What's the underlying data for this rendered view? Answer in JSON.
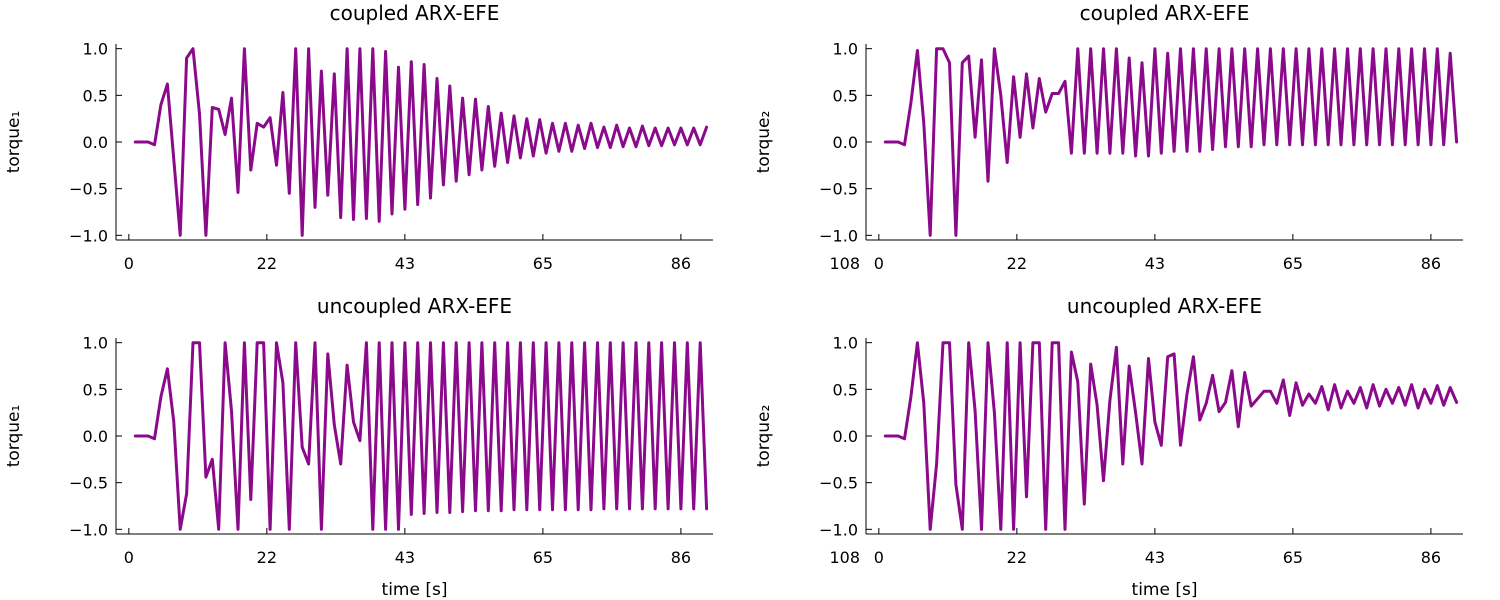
{
  "chart_data": [
    {
      "type": "line",
      "title": "coupled ARX-EFE",
      "xlabel": "",
      "ylabel": "torque₁",
      "xticks": [
        "0",
        "22",
        "43",
        "65",
        "86"
      ],
      "yticks": [
        "1.0",
        "0.5",
        "0.0",
        "−0.5",
        "−1.0"
      ],
      "extra_xtick": "",
      "xlim": [
        -2,
        91
      ],
      "ylim": [
        -1.05,
        1.05
      ],
      "series": [
        {
          "name": "torque1",
          "color": "#8b0a8b",
          "x": [
            1,
            2,
            3,
            4,
            5,
            6,
            8,
            9,
            10,
            11,
            12,
            13,
            14,
            15,
            16,
            17,
            18,
            19,
            20,
            21,
            22,
            23,
            24,
            25,
            26,
            27,
            28,
            29,
            30,
            31,
            32,
            33,
            34,
            35,
            36,
            37,
            38,
            39,
            40,
            41,
            42,
            43,
            44,
            45,
            46,
            47,
            48,
            49,
            50,
            51,
            52,
            53,
            54,
            55,
            56,
            57,
            58,
            59,
            60,
            61,
            62,
            63,
            64,
            65,
            66,
            67,
            68,
            69,
            70,
            71,
            72,
            73,
            74,
            75,
            76,
            77,
            78,
            79,
            80,
            81,
            82,
            83,
            84,
            85,
            86,
            87,
            88,
            89,
            90
          ],
          "y": [
            0,
            0,
            0,
            -0.03,
            0.4,
            0.62,
            -1,
            0.9,
            1,
            0.3,
            -1,
            0.37,
            0.35,
            0.08,
            0.47,
            -0.54,
            1,
            -0.3,
            0.2,
            0.16,
            0.26,
            -0.25,
            0.53,
            -0.55,
            1,
            -1,
            1,
            -0.7,
            0.76,
            -0.57,
            0.73,
            -0.81,
            1,
            -0.83,
            1,
            -0.82,
            1,
            -0.85,
            0.97,
            -0.77,
            0.8,
            -0.72,
            0.86,
            -0.67,
            0.83,
            -0.6,
            0.68,
            -0.46,
            0.6,
            -0.42,
            0.47,
            -0.35,
            0.46,
            -0.3,
            0.38,
            -0.26,
            0.31,
            -0.22,
            0.28,
            -0.17,
            0.25,
            -0.15,
            0.24,
            -0.12,
            0.2,
            -0.1,
            0.2,
            -0.1,
            0.18,
            -0.07,
            0.2,
            -0.06,
            0.16,
            -0.06,
            0.18,
            -0.05,
            0.15,
            -0.05,
            0.17,
            -0.04,
            0.15,
            -0.04,
            0.15,
            -0.03,
            0.15,
            -0.03,
            0.15,
            -0.03,
            0.16
          ]
        }
      ]
    },
    {
      "type": "line",
      "title": "coupled ARX-EFE",
      "xlabel": "",
      "ylabel": "torque₂",
      "xticks": [
        "0",
        "22",
        "43",
        "65",
        "86"
      ],
      "yticks": [
        "1.0",
        "0.5",
        "0.0",
        "−0.5",
        "−1.0"
      ],
      "extra_xtick": "108",
      "xlim": [
        -2,
        91
      ],
      "ylim": [
        -1.05,
        1.05
      ],
      "series": [
        {
          "name": "torque2",
          "color": "#8b0a8b",
          "x": [
            1,
            2,
            3,
            4,
            5,
            6,
            7,
            8,
            9,
            10,
            11,
            12,
            13,
            14,
            15,
            16,
            17,
            18,
            19,
            20,
            21,
            22,
            23,
            24,
            25,
            26,
            27,
            28,
            29,
            30,
            31,
            32,
            33,
            34,
            35,
            36,
            37,
            38,
            39,
            40,
            41,
            42,
            43,
            44,
            45,
            46,
            47,
            48,
            49,
            50,
            51,
            52,
            53,
            54,
            55,
            56,
            57,
            58,
            59,
            60,
            61,
            62,
            63,
            64,
            65,
            66,
            67,
            68,
            69,
            70,
            71,
            72,
            73,
            74,
            75,
            76,
            77,
            78,
            79,
            80,
            81,
            82,
            83,
            84,
            85,
            86,
            87,
            88,
            89,
            90
          ],
          "y": [
            0,
            0,
            0,
            -0.03,
            0.42,
            0.98,
            0.2,
            -1,
            1,
            1,
            0.85,
            -1,
            0.85,
            0.92,
            0.05,
            0.88,
            -0.42,
            1,
            0.5,
            -0.22,
            0.7,
            0.05,
            0.73,
            0.15,
            0.68,
            0.32,
            0.52,
            0.52,
            0.65,
            -0.12,
            1,
            -0.12,
            1,
            -0.12,
            1,
            -0.12,
            1,
            -0.12,
            0.9,
            -0.15,
            0.85,
            -0.15,
            1,
            -0.12,
            0.95,
            -0.1,
            1,
            -0.1,
            1,
            -0.1,
            1,
            -0.08,
            1,
            -0.05,
            1,
            -0.05,
            1,
            -0.05,
            1,
            -0.03,
            1,
            -0.03,
            1,
            -0.03,
            1,
            -0.03,
            1,
            -0.03,
            1,
            -0.03,
            1,
            -0.03,
            1,
            -0.03,
            1,
            -0.03,
            1,
            -0.03,
            1,
            -0.03,
            1,
            -0.03,
            1,
            -0.03,
            1,
            -0.03,
            1,
            -0.03,
            0.95,
            0
          ]
        }
      ]
    },
    {
      "type": "line",
      "title": "uncoupled ARX-EFE",
      "xlabel": "time [s]",
      "ylabel": "torque₁",
      "xticks": [
        "0",
        "22",
        "43",
        "65",
        "86"
      ],
      "yticks": [
        "1.0",
        "0.5",
        "0.0",
        "−0.5",
        "−1.0"
      ],
      "extra_xtick": "",
      "xlim": [
        -2,
        91
      ],
      "ylim": [
        -1.05,
        1.05
      ],
      "series": [
        {
          "name": "torque1",
          "color": "#8b0a8b",
          "x": [
            1,
            2,
            3,
            4,
            5,
            6,
            7,
            8,
            9,
            10,
            11,
            12,
            13,
            14,
            15,
            16,
            17,
            18,
            19,
            20,
            21,
            22,
            23,
            24,
            25,
            26,
            27,
            28,
            29,
            30,
            31,
            32,
            33,
            34,
            35,
            36,
            37,
            38,
            39,
            40,
            41,
            42,
            43,
            44,
            45,
            46,
            47,
            48,
            49,
            50,
            51,
            52,
            53,
            54,
            55,
            56,
            57,
            58,
            59,
            60,
            61,
            62,
            63,
            64,
            65,
            66,
            67,
            68,
            69,
            70,
            71,
            72,
            73,
            74,
            75,
            76,
            77,
            78,
            79,
            80,
            81,
            82,
            83,
            84,
            85,
            86,
            87,
            88,
            89,
            90
          ],
          "y": [
            0,
            0,
            0,
            -0.03,
            0.42,
            0.72,
            0.15,
            -1,
            -0.62,
            1,
            1,
            -0.44,
            -0.25,
            -1,
            1,
            0.27,
            -1,
            1,
            -0.68,
            1,
            1,
            -1,
            1,
            0.57,
            -1,
            1,
            -0.12,
            -0.3,
            1,
            -1,
            0.88,
            0.12,
            -0.3,
            0.76,
            0.15,
            -0.05,
            1,
            -1,
            1,
            -1,
            1,
            -1,
            1,
            -0.84,
            1,
            -0.83,
            1,
            -0.82,
            1,
            -0.82,
            1,
            -0.81,
            1,
            -0.8,
            1,
            -0.8,
            1,
            -0.8,
            1,
            -0.79,
            1,
            -0.79,
            1,
            -0.79,
            1,
            -0.79,
            1,
            -0.79,
            1,
            -0.79,
            1,
            -0.79,
            1,
            -0.78,
            1,
            -0.78,
            1,
            -0.78,
            1,
            -0.78,
            1,
            -0.78,
            1,
            -0.78,
            1,
            -0.78,
            1,
            -0.78,
            1,
            -0.78
          ]
        }
      ]
    },
    {
      "type": "line",
      "title": "uncoupled ARX-EFE",
      "xlabel": "time [s]",
      "ylabel": "torque₂",
      "xticks": [
        "0",
        "22",
        "43",
        "65",
        "86"
      ],
      "yticks": [
        "1.0",
        "0.5",
        "0.0",
        "−0.5",
        "−1.0"
      ],
      "extra_xtick": "108",
      "xlim": [
        -2,
        91
      ],
      "ylim": [
        -1.05,
        1.05
      ],
      "series": [
        {
          "name": "torque2",
          "color": "#8b0a8b",
          "x": [
            1,
            2,
            3,
            4,
            5,
            6,
            7,
            8,
            9,
            10,
            11,
            12,
            13,
            14,
            15,
            16,
            17,
            18,
            19,
            20,
            21,
            22,
            23,
            24,
            25,
            26,
            27,
            28,
            29,
            30,
            31,
            32,
            33,
            34,
            35,
            36,
            37,
            38,
            39,
            40,
            41,
            42,
            43,
            44,
            45,
            46,
            47,
            48,
            49,
            50,
            51,
            52,
            53,
            54,
            55,
            56,
            57,
            58,
            59,
            60,
            61,
            62,
            63,
            64,
            65,
            66,
            67,
            68,
            69,
            70,
            71,
            72,
            73,
            74,
            75,
            76,
            77,
            78,
            79,
            80,
            81,
            82,
            83,
            84,
            85,
            86,
            87,
            88,
            89,
            90
          ],
          "y": [
            0,
            0,
            0,
            -0.03,
            0.42,
            1,
            0.35,
            -1,
            -0.3,
            1,
            1,
            -0.52,
            -1,
            1,
            0.27,
            -1,
            1,
            0.25,
            -1,
            1,
            -1,
            1,
            -0.65,
            1,
            1,
            -1,
            1,
            1,
            -1,
            0.9,
            0.58,
            -0.73,
            0.77,
            0.33,
            -0.48,
            0.38,
            0.95,
            -0.3,
            0.75,
            0.25,
            -0.3,
            0.83,
            0.15,
            -0.1,
            0.85,
            0.88,
            -0.1,
            0.45,
            0.85,
            0.17,
            0.35,
            0.65,
            0.26,
            0.36,
            0.7,
            0.1,
            0.68,
            0.32,
            0.4,
            0.48,
            0.48,
            0.35,
            0.6,
            0.22,
            0.57,
            0.33,
            0.45,
            0.35,
            0.53,
            0.28,
            0.55,
            0.3,
            0.48,
            0.35,
            0.52,
            0.3,
            0.55,
            0.32,
            0.5,
            0.35,
            0.52,
            0.33,
            0.55,
            0.3,
            0.5,
            0.35,
            0.54,
            0.33,
            0.52,
            0.36
          ]
        }
      ]
    }
  ]
}
